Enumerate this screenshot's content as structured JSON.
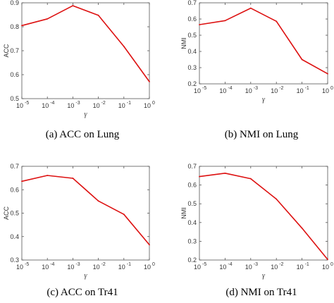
{
  "chart_data": [
    {
      "type": "line",
      "id": "acc-lung",
      "caption": "(a)  ACC on Lung",
      "xlabel": "γ",
      "ylabel": "ACC",
      "x_tick_exponents": [
        "-5",
        "-4",
        "-3",
        "-2",
        "-1",
        "0"
      ],
      "y_ticks": [
        "0.5",
        "0.6",
        "0.7",
        "0.8",
        "0.9"
      ],
      "ylim": [
        0.5,
        0.9
      ],
      "x": [
        -5,
        -4,
        -3,
        -2,
        -1,
        0
      ],
      "series": [
        {
          "values": [
            0.805,
            0.833,
            0.888,
            0.848,
            0.718,
            0.571
          ],
          "color": "#dd1111"
        }
      ]
    },
    {
      "type": "line",
      "id": "nmi-lung",
      "caption": "(b)  NMI on Lung",
      "xlabel": "γ",
      "ylabel": "NMI",
      "x_tick_exponents": [
        "-5",
        "-4",
        "-3",
        "-2",
        "-1",
        "0"
      ],
      "y_ticks": [
        "0.2",
        "0.3",
        "0.4",
        "0.5",
        "0.6",
        "0.7"
      ],
      "ylim": [
        0.2,
        0.7
      ],
      "x": [
        -5,
        -4,
        -3,
        -2,
        -1,
        0
      ],
      "series": [
        {
          "values": [
            0.565,
            0.59,
            0.667,
            0.586,
            0.35,
            0.262
          ],
          "color": "#dd1111"
        }
      ]
    },
    {
      "type": "line",
      "id": "acc-tr41",
      "caption": "(c)  ACC on Tr41",
      "xlabel": "γ",
      "ylabel": "ACC",
      "x_tick_exponents": [
        "-5",
        "-4",
        "-3",
        "-2",
        "-1",
        "0"
      ],
      "y_ticks": [
        "0.3",
        "0.4",
        "0.5",
        "0.6",
        "0.7"
      ],
      "ylim": [
        0.3,
        0.7
      ],
      "x": [
        -5,
        -4,
        -3,
        -2,
        -1,
        0
      ],
      "series": [
        {
          "values": [
            0.636,
            0.661,
            0.649,
            0.552,
            0.495,
            0.365
          ],
          "color": "#dd1111"
        }
      ]
    },
    {
      "type": "line",
      "id": "nmi-tr41",
      "caption": "(d)  NMI on Tr41",
      "xlabel": "γ",
      "ylabel": "NMI",
      "x_tick_exponents": [
        "-5",
        "-4",
        "-3",
        "-2",
        "-1",
        "0"
      ],
      "y_ticks": [
        "0.2",
        "0.3",
        "0.4",
        "0.5",
        "0.6",
        "0.7"
      ],
      "ylim": [
        0.2,
        0.7
      ],
      "x": [
        -5,
        -4,
        -3,
        -2,
        -1,
        0
      ],
      "series": [
        {
          "values": [
            0.645,
            0.663,
            0.634,
            0.525,
            0.37,
            0.203
          ],
          "color": "#dd1111"
        }
      ]
    }
  ]
}
